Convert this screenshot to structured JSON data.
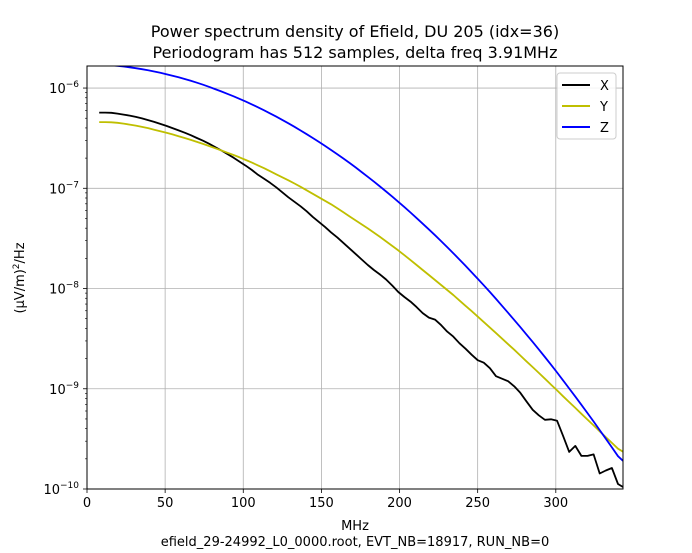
{
  "chart_data": {
    "type": "line",
    "title_line1": "Power spectrum density of Efield, DU 205 (idx=36)",
    "title_line2": "Periodogram has 512 samples, delta freq 3.91MHz",
    "xlabel": "MHz",
    "footer": "efield_29-24992_L0_0000.root, EVT_NB=18917, RUN_NB=0",
    "ylabel_prefix": "(µV/m)",
    "ylabel_exp": "2",
    "ylabel_suffix": "/Hz",
    "xlim": [
      0,
      343
    ],
    "ylim_log10": [
      -10,
      -5.78
    ],
    "x_ticks": [
      0,
      50,
      100,
      150,
      200,
      250,
      300
    ],
    "x_tick_labels": [
      "0",
      "50",
      "100",
      "150",
      "200",
      "250",
      "300"
    ],
    "y_tick_exponents": [
      -10,
      -9,
      -8,
      -7,
      -6
    ],
    "y_tick_base": "10",
    "y_tick_exp_labels": [
      "−10",
      "−9",
      "−8",
      "−7",
      "−6"
    ],
    "grid": true,
    "legend_position": "upper right",
    "x": [
      7.8,
      11.7,
      15.6,
      19.5,
      23.4,
      27.3,
      31.2,
      35.2,
      39.1,
      43.0,
      46.9,
      50.8,
      54.7,
      58.6,
      62.5,
      66.4,
      70.3,
      74.2,
      78.1,
      82.0,
      85.9,
      89.8,
      93.8,
      97.7,
      101.6,
      105.5,
      109.4,
      113.3,
      117.2,
      121.1,
      125.0,
      128.9,
      132.8,
      136.7,
      140.6,
      144.5,
      148.4,
      152.3,
      156.2,
      160.2,
      164.1,
      168.0,
      171.9,
      175.8,
      179.7,
      183.6,
      187.5,
      191.4,
      195.3,
      199.2,
      203.1,
      207.0,
      210.9,
      214.8,
      218.8,
      222.7,
      226.6,
      230.5,
      234.4,
      238.3,
      242.2,
      246.1,
      250.0,
      253.9,
      257.8,
      261.7,
      265.6,
      269.5,
      273.4,
      277.3,
      281.2,
      285.2,
      289.1,
      293.0,
      296.9,
      300.8,
      304.7,
      308.6,
      312.5,
      316.4,
      320.3,
      324.2,
      328.1,
      332.0,
      335.9,
      339.8,
      343.0
    ],
    "series": [
      {
        "name": "X",
        "color": "#000000",
        "log10_values": [
          -6.245,
          -6.245,
          -6.247,
          -6.255,
          -6.265,
          -6.275,
          -6.288,
          -6.303,
          -6.32,
          -6.338,
          -6.358,
          -6.378,
          -6.4,
          -6.422,
          -6.445,
          -6.47,
          -6.498,
          -6.525,
          -6.555,
          -6.588,
          -6.622,
          -6.658,
          -6.695,
          -6.735,
          -6.775,
          -6.818,
          -6.865,
          -6.905,
          -6.945,
          -6.99,
          -7.04,
          -7.09,
          -7.135,
          -7.18,
          -7.23,
          -7.285,
          -7.335,
          -7.385,
          -7.44,
          -7.49,
          -7.545,
          -7.6,
          -7.655,
          -7.71,
          -7.765,
          -7.815,
          -7.86,
          -7.91,
          -7.97,
          -8.035,
          -8.085,
          -8.13,
          -8.185,
          -8.245,
          -8.29,
          -8.31,
          -8.365,
          -8.43,
          -8.48,
          -8.545,
          -8.6,
          -8.66,
          -8.715,
          -8.74,
          -8.795,
          -8.875,
          -8.9,
          -8.925,
          -8.975,
          -9.04,
          -9.125,
          -9.21,
          -9.265,
          -9.31,
          -9.305,
          -9.32,
          -9.47,
          -9.63,
          -9.57,
          -9.67,
          -9.67,
          -9.655,
          -9.845,
          -9.815,
          -9.79,
          -9.95,
          -9.98
        ]
      },
      {
        "name": "Y",
        "color": "#bfbf00",
        "log10_values": [
          -6.34,
          -6.34,
          -6.342,
          -6.347,
          -6.355,
          -6.365,
          -6.375,
          -6.388,
          -6.4,
          -6.415,
          -6.43,
          -6.445,
          -6.462,
          -6.48,
          -6.498,
          -6.517,
          -6.537,
          -6.557,
          -6.578,
          -6.6,
          -6.622,
          -6.645,
          -6.668,
          -6.692,
          -6.718,
          -6.744,
          -6.772,
          -6.8,
          -6.83,
          -6.86,
          -6.89,
          -6.92,
          -6.952,
          -6.985,
          -7.02,
          -7.055,
          -7.09,
          -7.125,
          -7.16,
          -7.2,
          -7.24,
          -7.28,
          -7.32,
          -7.36,
          -7.4,
          -7.442,
          -7.485,
          -7.53,
          -7.575,
          -7.62,
          -7.668,
          -7.716,
          -7.765,
          -7.815,
          -7.865,
          -7.915,
          -7.965,
          -8.015,
          -8.065,
          -8.118,
          -8.172,
          -8.225,
          -8.28,
          -8.335,
          -8.39,
          -8.445,
          -8.5,
          -8.555,
          -8.61,
          -8.668,
          -8.726,
          -8.784,
          -8.842,
          -8.9,
          -8.958,
          -9.016,
          -9.075,
          -9.133,
          -9.191,
          -9.25,
          -9.308,
          -9.366,
          -9.424,
          -9.482,
          -9.54,
          -9.598,
          -9.628
        ]
      },
      {
        "name": "Z",
        "color": "#0000ff",
        "log10_values": [
          -5.772,
          -5.772,
          -5.774,
          -5.778,
          -5.785,
          -5.793,
          -5.802,
          -5.812,
          -5.823,
          -5.835,
          -5.848,
          -5.862,
          -5.877,
          -5.893,
          -5.91,
          -5.928,
          -5.947,
          -5.967,
          -5.988,
          -6.01,
          -6.033,
          -6.057,
          -6.082,
          -6.108,
          -6.135,
          -6.163,
          -6.192,
          -6.222,
          -6.253,
          -6.285,
          -6.318,
          -6.352,
          -6.387,
          -6.423,
          -6.46,
          -6.498,
          -6.537,
          -6.577,
          -6.618,
          -6.66,
          -6.703,
          -6.747,
          -6.792,
          -6.838,
          -6.885,
          -6.933,
          -6.982,
          -7.032,
          -7.083,
          -7.135,
          -7.188,
          -7.242,
          -7.297,
          -7.353,
          -7.41,
          -7.468,
          -7.527,
          -7.587,
          -7.648,
          -7.71,
          -7.773,
          -7.837,
          -7.902,
          -7.968,
          -8.035,
          -8.103,
          -8.172,
          -8.242,
          -8.313,
          -8.385,
          -8.458,
          -8.532,
          -8.607,
          -8.683,
          -8.76,
          -8.838,
          -8.917,
          -8.997,
          -9.078,
          -9.16,
          -9.243,
          -9.327,
          -9.412,
          -9.498,
          -9.585,
          -9.673,
          -9.72
        ]
      }
    ]
  }
}
